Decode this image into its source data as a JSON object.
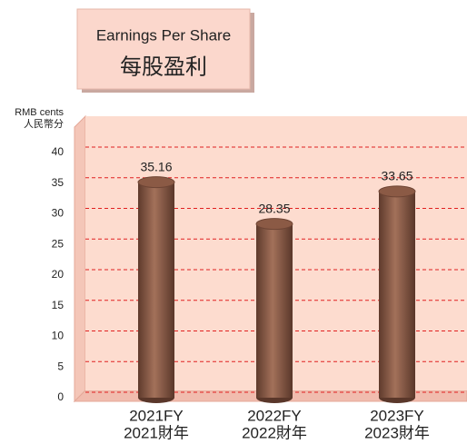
{
  "chart_data": {
    "type": "bar",
    "title": "Earnings Per Share",
    "subtitle": "每股盈利",
    "y_label": [
      "RMB cents",
      "人民幣分"
    ],
    "categories": [
      [
        "2021FY",
        "2021財年"
      ],
      [
        "2022FY",
        "2022財年"
      ],
      [
        "2023FY",
        "2023財年"
      ]
    ],
    "values": [
      35.16,
      28.35,
      33.65
    ],
    "color": "#8b5a45",
    "ylim": [
      0,
      40
    ],
    "yticks": [
      0,
      5,
      10,
      15,
      20,
      25,
      30,
      35,
      40
    ],
    "grid": true
  }
}
